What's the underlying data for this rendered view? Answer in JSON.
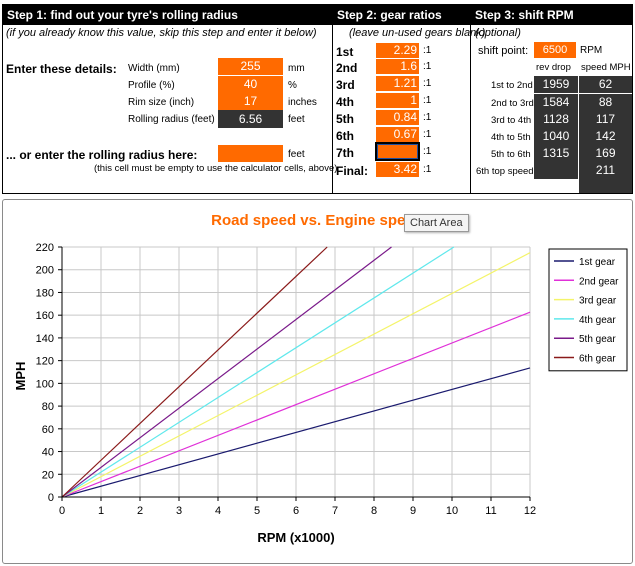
{
  "step1": {
    "header": "Step 1: find out your tyre's rolling radius",
    "note": "(if you already know this value, skip this step and enter it below)",
    "enter_label": "Enter these details:",
    "fields": [
      {
        "label": "Width (mm)",
        "value": "255",
        "unit": "mm"
      },
      {
        "label": "Profile (%)",
        "value": "40",
        "unit": "%"
      },
      {
        "label": "Rim size (inch)",
        "value": "17",
        "unit": "inches"
      },
      {
        "label": "Rolling radius (feet)",
        "value": "6.56",
        "unit": "feet"
      }
    ],
    "alt_label": "... or enter the rolling radius here:",
    "alt_unit": "feet",
    "alt_note": "(this cell must be empty to use the calculator cells, above)"
  },
  "step2": {
    "header": "Step 2: gear ratios",
    "note": "(leave un-used gears blank)",
    "gears": [
      {
        "label": "1st",
        "value": "2.29",
        "suffix": ":1"
      },
      {
        "label": "2nd",
        "value": "1.6",
        "suffix": ":1"
      },
      {
        "label": "3rd",
        "value": "1.21",
        "suffix": ":1"
      },
      {
        "label": "4th",
        "value": "1",
        "suffix": ":1"
      },
      {
        "label": "5th",
        "value": "0.84",
        "suffix": ":1"
      },
      {
        "label": "6th",
        "value": "0.67",
        "suffix": ":1"
      },
      {
        "label": "7th",
        "value": "",
        "suffix": ":1"
      },
      {
        "label": "Final:",
        "value": "3.42",
        "suffix": ":1"
      }
    ]
  },
  "step3": {
    "header": "Step 3: shift RPM",
    "note": "(optional)",
    "shift_label": "shift point:",
    "shift_value": "6500",
    "shift_unit": "RPM",
    "col_rev": "rev drop",
    "col_speed": "speed MPH",
    "rows": [
      {
        "label": "1st to 2nd",
        "rev": "1959",
        "speed": "62"
      },
      {
        "label": "2nd to 3rd",
        "rev": "1584",
        "speed": "88"
      },
      {
        "label": "3rd to 4th",
        "rev": "1128",
        "speed": "117"
      },
      {
        "label": "4th to 5th",
        "rev": "1040",
        "speed": "142"
      },
      {
        "label": "5th to 6th",
        "rev": "1315",
        "speed": "169"
      },
      {
        "label": "6th top speed",
        "rev": "",
        "speed": "211"
      }
    ]
  },
  "tooltip": "Chart Area",
  "chart_data": {
    "type": "line",
    "title": "Road speed vs. Engine speed",
    "xlabel": "RPM (x1000)",
    "ylabel": "MPH",
    "xlim": [
      0,
      12
    ],
    "ylim": [
      0,
      220
    ],
    "xticks": [
      0,
      1,
      2,
      3,
      4,
      5,
      6,
      7,
      8,
      9,
      10,
      11,
      12
    ],
    "yticks": [
      0,
      20,
      40,
      60,
      80,
      100,
      120,
      140,
      160,
      180,
      200,
      220
    ],
    "grid": true,
    "legend_position": "right",
    "series": [
      {
        "name": "1st gear",
        "color": "#1a1a6e",
        "points": [
          [
            0,
            0
          ],
          [
            12,
            113.6
          ]
        ]
      },
      {
        "name": "2nd gear",
        "color": "#e030d8",
        "points": [
          [
            0,
            0
          ],
          [
            12,
            162.6
          ]
        ]
      },
      {
        "name": "3rd gear",
        "color": "#f4f46a",
        "points": [
          [
            0,
            0
          ],
          [
            12,
            215
          ]
        ]
      },
      {
        "name": "4th gear",
        "color": "#5fe8ec",
        "points": [
          [
            0,
            0
          ],
          [
            10.05,
            220
          ]
        ]
      },
      {
        "name": "5th gear",
        "color": "#7a1a8a",
        "points": [
          [
            0,
            0
          ],
          [
            8.45,
            220
          ]
        ]
      },
      {
        "name": "6th gear",
        "color": "#8a1a1a",
        "points": [
          [
            0,
            0
          ],
          [
            6.8,
            220
          ]
        ]
      }
    ]
  }
}
